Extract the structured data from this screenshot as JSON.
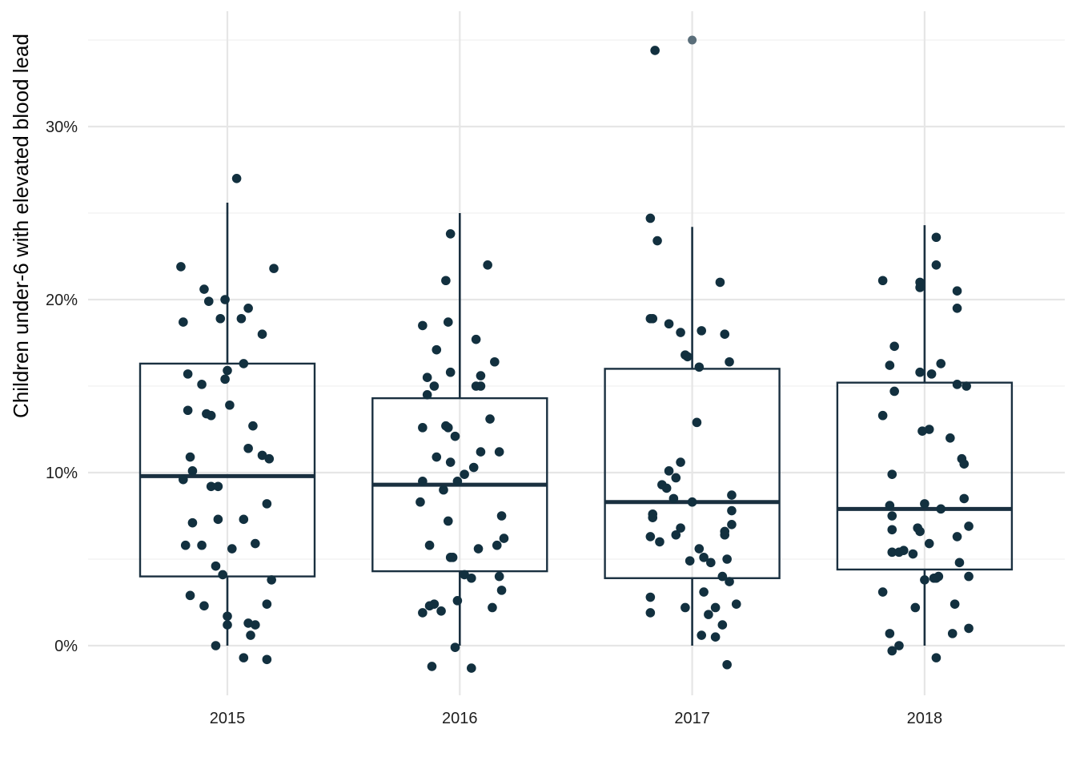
{
  "chart_data": {
    "type": "boxplot",
    "title": "",
    "xlabel": "",
    "ylabel": "Children under-6 with elevated blood lead",
    "categories": [
      "2015",
      "2016",
      "2017",
      "2018"
    ],
    "y_ticks": [
      {
        "value": 0,
        "label": "0%"
      },
      {
        "value": 10,
        "label": "10%"
      },
      {
        "value": 20,
        "label": "20%"
      },
      {
        "value": 30,
        "label": "30%"
      }
    ],
    "ylim": [
      -3.0,
      36.5
    ],
    "grid": true,
    "legend": "none",
    "colors": {
      "box": "#1a3040",
      "point": "#12303f",
      "outlier": "#5a6e7a"
    },
    "boxes": [
      {
        "category": "2015",
        "q1": 4.0,
        "median": 9.8,
        "q3": 16.3,
        "whisker_low": 0.0,
        "whisker_high": 25.6,
        "outliers": []
      },
      {
        "category": "2016",
        "q1": 4.3,
        "median": 9.3,
        "q3": 14.3,
        "whisker_low": 0.0,
        "whisker_high": 25.0,
        "outliers": []
      },
      {
        "category": "2017",
        "q1": 3.9,
        "median": 8.3,
        "q3": 16.0,
        "whisker_low": 0.0,
        "whisker_high": 24.2,
        "outliers": [
          35.0
        ]
      },
      {
        "category": "2018",
        "q1": 4.4,
        "median": 7.9,
        "q3": 15.2,
        "whisker_low": 0.0,
        "whisker_high": 24.3,
        "outliers": []
      }
    ],
    "points": [
      {
        "x": 2015.04,
        "y": 27.0
      },
      {
        "x": 2014.8,
        "y": 21.9
      },
      {
        "x": 2015.2,
        "y": 21.8
      },
      {
        "x": 2014.9,
        "y": 20.6
      },
      {
        "x": 2014.92,
        "y": 19.9
      },
      {
        "x": 2014.99,
        "y": 20.0
      },
      {
        "x": 2015.09,
        "y": 19.5
      },
      {
        "x": 2014.81,
        "y": 18.7
      },
      {
        "x": 2014.97,
        "y": 18.9
      },
      {
        "x": 2015.06,
        "y": 18.9
      },
      {
        "x": 2015.15,
        "y": 18.0
      },
      {
        "x": 2015.07,
        "y": 16.3
      },
      {
        "x": 2015.0,
        "y": 15.9
      },
      {
        "x": 2014.83,
        "y": 15.7
      },
      {
        "x": 2014.99,
        "y": 15.4
      },
      {
        "x": 2014.89,
        "y": 15.1
      },
      {
        "x": 2014.83,
        "y": 13.6
      },
      {
        "x": 2014.91,
        "y": 13.4
      },
      {
        "x": 2014.93,
        "y": 13.3
      },
      {
        "x": 2015.01,
        "y": 13.9
      },
      {
        "x": 2015.11,
        "y": 12.7
      },
      {
        "x": 2015.09,
        "y": 11.4
      },
      {
        "x": 2015.15,
        "y": 11.0
      },
      {
        "x": 2015.18,
        "y": 10.8
      },
      {
        "x": 2014.84,
        "y": 10.9
      },
      {
        "x": 2014.85,
        "y": 10.1
      },
      {
        "x": 2014.81,
        "y": 9.6
      },
      {
        "x": 2014.93,
        "y": 9.2
      },
      {
        "x": 2014.96,
        "y": 9.2
      },
      {
        "x": 2015.17,
        "y": 8.2
      },
      {
        "x": 2014.85,
        "y": 7.1
      },
      {
        "x": 2014.96,
        "y": 7.3
      },
      {
        "x": 2015.07,
        "y": 7.3
      },
      {
        "x": 2014.82,
        "y": 5.8
      },
      {
        "x": 2014.89,
        "y": 5.8
      },
      {
        "x": 2015.02,
        "y": 5.6
      },
      {
        "x": 2015.12,
        "y": 5.9
      },
      {
        "x": 2014.95,
        "y": 4.6
      },
      {
        "x": 2014.98,
        "y": 4.1
      },
      {
        "x": 2015.19,
        "y": 3.8
      },
      {
        "x": 2014.84,
        "y": 2.9
      },
      {
        "x": 2014.9,
        "y": 2.3
      },
      {
        "x": 2015.17,
        "y": 2.4
      },
      {
        "x": 2015.0,
        "y": 1.7
      },
      {
        "x": 2015.0,
        "y": 1.2
      },
      {
        "x": 2015.09,
        "y": 1.3
      },
      {
        "x": 2015.12,
        "y": 1.2
      },
      {
        "x": 2015.1,
        "y": 0.6
      },
      {
        "x": 2014.95,
        "y": 0.0
      },
      {
        "x": 2015.07,
        "y": -0.7
      },
      {
        "x": 2015.17,
        "y": -0.8
      },
      {
        "x": 2015.96,
        "y": 23.8
      },
      {
        "x": 2016.12,
        "y": 22.0
      },
      {
        "x": 2015.94,
        "y": 21.1
      },
      {
        "x": 2015.84,
        "y": 18.5
      },
      {
        "x": 2015.95,
        "y": 18.7
      },
      {
        "x": 2016.07,
        "y": 17.7
      },
      {
        "x": 2015.9,
        "y": 17.1
      },
      {
        "x": 2016.15,
        "y": 16.4
      },
      {
        "x": 2015.96,
        "y": 15.8
      },
      {
        "x": 2016.09,
        "y": 15.6
      },
      {
        "x": 2015.86,
        "y": 15.5
      },
      {
        "x": 2016.09,
        "y": 15.0
      },
      {
        "x": 2016.07,
        "y": 15.0
      },
      {
        "x": 2015.89,
        "y": 15.0
      },
      {
        "x": 2015.86,
        "y": 14.5
      },
      {
        "x": 2016.13,
        "y": 13.1
      },
      {
        "x": 2015.94,
        "y": 12.7
      },
      {
        "x": 2015.84,
        "y": 12.6
      },
      {
        "x": 2015.95,
        "y": 12.6
      },
      {
        "x": 2015.98,
        "y": 12.1
      },
      {
        "x": 2016.09,
        "y": 11.2
      },
      {
        "x": 2016.17,
        "y": 11.2
      },
      {
        "x": 2015.9,
        "y": 10.9
      },
      {
        "x": 2015.96,
        "y": 10.6
      },
      {
        "x": 2016.06,
        "y": 10.3
      },
      {
        "x": 2016.02,
        "y": 9.9
      },
      {
        "x": 2015.84,
        "y": 9.5
      },
      {
        "x": 2015.99,
        "y": 9.5
      },
      {
        "x": 2015.93,
        "y": 9.0
      },
      {
        "x": 2015.83,
        "y": 8.3
      },
      {
        "x": 2016.18,
        "y": 7.5
      },
      {
        "x": 2015.95,
        "y": 7.2
      },
      {
        "x": 2016.19,
        "y": 6.2
      },
      {
        "x": 2015.87,
        "y": 5.8
      },
      {
        "x": 2016.16,
        "y": 5.8
      },
      {
        "x": 2016.08,
        "y": 5.6
      },
      {
        "x": 2015.96,
        "y": 5.1
      },
      {
        "x": 2015.97,
        "y": 5.1
      },
      {
        "x": 2016.02,
        "y": 4.1
      },
      {
        "x": 2016.05,
        "y": 3.9
      },
      {
        "x": 2016.17,
        "y": 4.0
      },
      {
        "x": 2016.18,
        "y": 3.2
      },
      {
        "x": 2015.99,
        "y": 2.6
      },
      {
        "x": 2015.89,
        "y": 2.4
      },
      {
        "x": 2015.87,
        "y": 2.3
      },
      {
        "x": 2016.14,
        "y": 2.2
      },
      {
        "x": 2015.84,
        "y": 1.9
      },
      {
        "x": 2015.92,
        "y": 2.0
      },
      {
        "x": 2015.98,
        "y": -0.1
      },
      {
        "x": 2015.88,
        "y": -1.2
      },
      {
        "x": 2016.05,
        "y": -1.3
      },
      {
        "x": 2016.84,
        "y": 34.4
      },
      {
        "x": 2016.82,
        "y": 24.7
      },
      {
        "x": 2016.85,
        "y": 23.4
      },
      {
        "x": 2017.12,
        "y": 21.0
      },
      {
        "x": 2016.82,
        "y": 18.9
      },
      {
        "x": 2016.83,
        "y": 18.9
      },
      {
        "x": 2016.9,
        "y": 18.6
      },
      {
        "x": 2016.95,
        "y": 18.1
      },
      {
        "x": 2017.04,
        "y": 18.2
      },
      {
        "x": 2017.14,
        "y": 18.0
      },
      {
        "x": 2016.97,
        "y": 16.8
      },
      {
        "x": 2016.98,
        "y": 16.7
      },
      {
        "x": 2017.16,
        "y": 16.4
      },
      {
        "x": 2017.03,
        "y": 16.1
      },
      {
        "x": 2017.02,
        "y": 12.9
      },
      {
        "x": 2016.95,
        "y": 10.6
      },
      {
        "x": 2016.9,
        "y": 10.1
      },
      {
        "x": 2016.93,
        "y": 9.7
      },
      {
        "x": 2016.87,
        "y": 9.3
      },
      {
        "x": 2016.89,
        "y": 9.1
      },
      {
        "x": 2017.17,
        "y": 8.7
      },
      {
        "x": 2016.92,
        "y": 8.5
      },
      {
        "x": 2017.0,
        "y": 8.3
      },
      {
        "x": 2016.83,
        "y": 7.6
      },
      {
        "x": 2016.83,
        "y": 7.4
      },
      {
        "x": 2017.17,
        "y": 7.8
      },
      {
        "x": 2017.17,
        "y": 7.0
      },
      {
        "x": 2016.95,
        "y": 6.8
      },
      {
        "x": 2017.14,
        "y": 6.6
      },
      {
        "x": 2017.14,
        "y": 6.4
      },
      {
        "x": 2016.93,
        "y": 6.4
      },
      {
        "x": 2016.82,
        "y": 6.3
      },
      {
        "x": 2016.86,
        "y": 6.0
      },
      {
        "x": 2017.03,
        "y": 5.6
      },
      {
        "x": 2017.05,
        "y": 5.1
      },
      {
        "x": 2017.15,
        "y": 5.0
      },
      {
        "x": 2016.99,
        "y": 4.9
      },
      {
        "x": 2017.08,
        "y": 4.8
      },
      {
        "x": 2017.13,
        "y": 4.0
      },
      {
        "x": 2017.16,
        "y": 3.7
      },
      {
        "x": 2017.05,
        "y": 3.1
      },
      {
        "x": 2016.82,
        "y": 2.8
      },
      {
        "x": 2017.19,
        "y": 2.4
      },
      {
        "x": 2016.97,
        "y": 2.2
      },
      {
        "x": 2017.1,
        "y": 2.2
      },
      {
        "x": 2016.82,
        "y": 1.9
      },
      {
        "x": 2017.07,
        "y": 1.8
      },
      {
        "x": 2017.13,
        "y": 1.2
      },
      {
        "x": 2017.04,
        "y": 0.6
      },
      {
        "x": 2017.1,
        "y": 0.5
      },
      {
        "x": 2017.15,
        "y": -1.1
      },
      {
        "x": 2018.05,
        "y": 23.6
      },
      {
        "x": 2018.05,
        "y": 22.0
      },
      {
        "x": 2017.82,
        "y": 21.1
      },
      {
        "x": 2017.98,
        "y": 21.0
      },
      {
        "x": 2017.98,
        "y": 20.7
      },
      {
        "x": 2018.14,
        "y": 20.5
      },
      {
        "x": 2018.14,
        "y": 19.5
      },
      {
        "x": 2017.87,
        "y": 17.3
      },
      {
        "x": 2017.85,
        "y": 16.2
      },
      {
        "x": 2018.07,
        "y": 16.3
      },
      {
        "x": 2018.03,
        "y": 15.7
      },
      {
        "x": 2017.98,
        "y": 15.8
      },
      {
        "x": 2018.18,
        "y": 15.0
      },
      {
        "x": 2017.87,
        "y": 14.7
      },
      {
        "x": 2018.14,
        "y": 15.1
      },
      {
        "x": 2017.82,
        "y": 13.3
      },
      {
        "x": 2017.99,
        "y": 12.4
      },
      {
        "x": 2018.02,
        "y": 12.5
      },
      {
        "x": 2018.11,
        "y": 12.0
      },
      {
        "x": 2018.16,
        "y": 10.8
      },
      {
        "x": 2018.17,
        "y": 10.5
      },
      {
        "x": 2017.86,
        "y": 9.9
      },
      {
        "x": 2018.17,
        "y": 8.5
      },
      {
        "x": 2017.85,
        "y": 8.1
      },
      {
        "x": 2018.0,
        "y": 8.2
      },
      {
        "x": 2018.07,
        "y": 7.9
      },
      {
        "x": 2017.86,
        "y": 7.5
      },
      {
        "x": 2017.97,
        "y": 6.8
      },
      {
        "x": 2018.19,
        "y": 6.9
      },
      {
        "x": 2017.86,
        "y": 6.7
      },
      {
        "x": 2017.98,
        "y": 6.6
      },
      {
        "x": 2018.14,
        "y": 6.3
      },
      {
        "x": 2018.02,
        "y": 5.9
      },
      {
        "x": 2017.86,
        "y": 5.4
      },
      {
        "x": 2017.89,
        "y": 5.4
      },
      {
        "x": 2017.91,
        "y": 5.5
      },
      {
        "x": 2017.95,
        "y": 5.3
      },
      {
        "x": 2018.15,
        "y": 4.8
      },
      {
        "x": 2018.19,
        "y": 4.0
      },
      {
        "x": 2018.04,
        "y": 3.9
      },
      {
        "x": 2018.05,
        "y": 3.9
      },
      {
        "x": 2018.06,
        "y": 4.0
      },
      {
        "x": 2018.0,
        "y": 3.8
      },
      {
        "x": 2017.82,
        "y": 3.1
      },
      {
        "x": 2018.13,
        "y": 2.4
      },
      {
        "x": 2017.96,
        "y": 2.2
      },
      {
        "x": 2018.19,
        "y": 1.0
      },
      {
        "x": 2018.12,
        "y": 0.7
      },
      {
        "x": 2017.85,
        "y": 0.7
      },
      {
        "x": 2017.89,
        "y": 0.0
      },
      {
        "x": 2017.86,
        "y": -0.3
      },
      {
        "x": 2018.05,
        "y": -0.7
      }
    ]
  }
}
